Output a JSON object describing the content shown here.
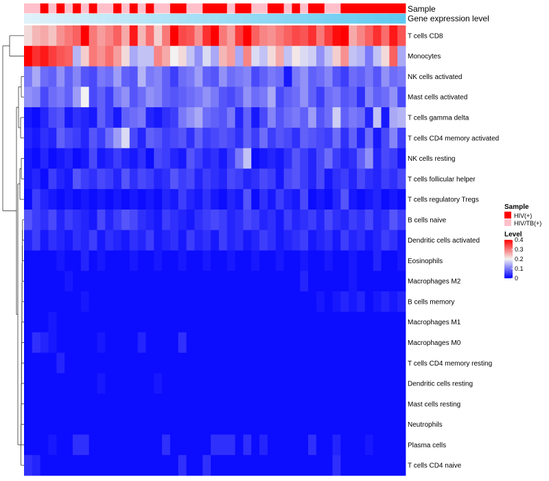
{
  "chart_data": {
    "type": "heatmap",
    "title": "",
    "annotation_tracks": [
      "Sample",
      "Gene expression level"
    ],
    "rows": [
      "T cells CD8",
      "Monocytes",
      "NK cells activated",
      "Mast cells activated",
      "T cells gamma delta",
      "T cells CD4 memory activated",
      "NK cells resting",
      "T cells follicular helper",
      "T cells regulatory  Tregs",
      "B cells naive",
      "Dendritic cells activated",
      "Eosinophils",
      "Macrophages M2",
      "B cells memory",
      "Macrophages M1",
      "Macrophages M0",
      "T cells CD4 memory resting",
      "Dendritic cells resting",
      "Mast cells resting",
      "Neutrophils",
      "Plasma cells",
      "T cells CD4 naive"
    ],
    "n_columns": 47,
    "sample_groups": [
      0,
      0,
      1,
      0,
      1,
      0,
      1,
      0,
      1,
      0,
      0,
      1,
      0,
      1,
      0,
      1,
      0,
      0,
      1,
      1,
      0,
      0,
      1,
      1,
      1,
      0,
      1,
      1,
      0,
      0,
      1,
      1,
      0,
      1,
      0,
      1,
      1,
      0,
      0,
      1,
      1,
      1,
      1,
      1,
      1,
      1,
      1
    ],
    "gene_expression_level": [
      0.05,
      0.07,
      0.09,
      0.11,
      0.13,
      0.15,
      0.17,
      0.19,
      0.21,
      0.23,
      0.25,
      0.27,
      0.29,
      0.31,
      0.33,
      0.35,
      0.37,
      0.39,
      0.41,
      0.43,
      0.45,
      0.47,
      0.49,
      0.51,
      0.53,
      0.55,
      0.57,
      0.59,
      0.61,
      0.63,
      0.65,
      0.67,
      0.69,
      0.71,
      0.73,
      0.75,
      0.77,
      0.79,
      0.81,
      0.83,
      0.85,
      0.87,
      0.89,
      0.91,
      0.93,
      0.95,
      0.97
    ],
    "values": [
      [
        0.22,
        0.25,
        0.26,
        0.24,
        0.28,
        0.3,
        0.32,
        0.41,
        0.3,
        0.27,
        0.29,
        0.32,
        0.26,
        0.38,
        0.25,
        0.31,
        0.23,
        0.3,
        0.4,
        0.34,
        0.33,
        0.28,
        0.36,
        0.41,
        0.3,
        0.27,
        0.35,
        0.41,
        0.32,
        0.29,
        0.28,
        0.3,
        0.32,
        0.34,
        0.33,
        0.36,
        0.3,
        0.35,
        0.39,
        0.41,
        0.26,
        0.29,
        0.32,
        0.36,
        0.31,
        0.38,
        0.33
      ],
      [
        0.4,
        0.36,
        0.38,
        0.35,
        0.33,
        0.32,
        0.15,
        0.23,
        0.3,
        0.28,
        0.31,
        0.27,
        0.22,
        0.14,
        0.16,
        0.16,
        0.29,
        0.26,
        0.2,
        0.22,
        0.16,
        0.12,
        0.18,
        0.14,
        0.25,
        0.27,
        0.14,
        0.29,
        0.18,
        0.16,
        0.22,
        0.26,
        0.16,
        0.21,
        0.18,
        0.17,
        0.12,
        0.16,
        0.23,
        0.28,
        0.16,
        0.15,
        0.1,
        0.16,
        0.22,
        0.32,
        0.14
      ],
      [
        0.1,
        0.14,
        0.09,
        0.08,
        0.12,
        0.08,
        0.11,
        0.07,
        0.06,
        0.1,
        0.09,
        0.13,
        0.08,
        0.07,
        0.15,
        0.1,
        0.11,
        0.08,
        0.05,
        0.09,
        0.1,
        0.13,
        0.08,
        0.07,
        0.12,
        0.09,
        0.1,
        0.11,
        0.06,
        0.08,
        0.1,
        0.09,
        0.02,
        0.1,
        0.12,
        0.08,
        0.09,
        0.11,
        0.07,
        0.05,
        0.09,
        0.08,
        0.1,
        0.07,
        0.12,
        0.09,
        0.1
      ],
      [
        0.12,
        0.11,
        0.06,
        0.09,
        0.1,
        0.08,
        0.13,
        0.2,
        0.06,
        0.08,
        0.05,
        0.1,
        0.12,
        0.07,
        0.09,
        0.12,
        0.11,
        0.08,
        0.07,
        0.08,
        0.09,
        0.1,
        0.12,
        0.1,
        0.07,
        0.06,
        0.08,
        0.12,
        0.09,
        0.1,
        0.14,
        0.06,
        0.08,
        0.09,
        0.12,
        0.08,
        0.05,
        0.09,
        0.1,
        0.07,
        0.08,
        0.04,
        0.11,
        0.08,
        0.09,
        0.12,
        0.06
      ],
      [
        0.02,
        0.01,
        0.03,
        0.06,
        0.07,
        0.02,
        0.04,
        0.03,
        0.02,
        0.08,
        0.05,
        0.02,
        0.08,
        0.09,
        0.1,
        0.03,
        0.02,
        0.04,
        0.05,
        0.1,
        0.12,
        0.14,
        0.09,
        0.08,
        0.07,
        0.1,
        0.03,
        0.08,
        0.02,
        0.06,
        0.11,
        0.07,
        0.09,
        0.1,
        0.08,
        0.13,
        0.07,
        0.09,
        0.17,
        0.08,
        0.1,
        0.09,
        0.03,
        0.16,
        0.02,
        0.14,
        0.15
      ],
      [
        0.03,
        0.02,
        0.04,
        0.03,
        0.08,
        0.06,
        0.05,
        0.03,
        0.07,
        0.05,
        0.09,
        0.13,
        0.18,
        0.06,
        0.03,
        0.08,
        0.07,
        0.05,
        0.06,
        0.07,
        0.04,
        0.08,
        0.05,
        0.06,
        0.07,
        0.06,
        0.04,
        0.08,
        0.05,
        0.09,
        0.05,
        0.07,
        0.06,
        0.04,
        0.08,
        0.07,
        0.06,
        0.05,
        0.09,
        0.04,
        0.08,
        0.03,
        0.09,
        0.02,
        0.06,
        0.11,
        0.05
      ],
      [
        0.02,
        0.01,
        0.03,
        0.01,
        0.02,
        0.03,
        0.01,
        0.02,
        0.06,
        0.02,
        0.03,
        0.05,
        0.03,
        0.02,
        0.04,
        0.01,
        0.06,
        0.05,
        0.03,
        0.02,
        0.07,
        0.05,
        0.03,
        0.04,
        0.02,
        0.05,
        0.1,
        0.16,
        0.01,
        0.02,
        0.03,
        0.02,
        0.04,
        0.07,
        0.05,
        0.03,
        0.06,
        0.09,
        0.05,
        0.03,
        0.04,
        0.08,
        0.12,
        0.03,
        0.06,
        0.05,
        0.02
      ],
      [
        0.02,
        0.03,
        0.01,
        0.05,
        0.03,
        0.02,
        0.07,
        0.05,
        0.04,
        0.06,
        0.05,
        0.03,
        0.07,
        0.04,
        0.06,
        0.05,
        0.03,
        0.04,
        0.07,
        0.05,
        0.06,
        0.03,
        0.05,
        0.04,
        0.03,
        0.06,
        0.05,
        0.03,
        0.04,
        0.06,
        0.05,
        0.02,
        0.06,
        0.07,
        0.05,
        0.03,
        0.06,
        0.02,
        0.04,
        0.05,
        0.03,
        0.06,
        0.04,
        0.03,
        0.05,
        0.04,
        0.06
      ],
      [
        0.01,
        0.05,
        0.03,
        0.02,
        0.01,
        0.02,
        0.01,
        0.02,
        0.01,
        0.02,
        0.01,
        0.02,
        0.01,
        0.02,
        0.01,
        0.02,
        0.01,
        0.03,
        0.02,
        0.05,
        0.03,
        0.02,
        0.04,
        0.02,
        0.01,
        0.03,
        0.02,
        0.07,
        0.01,
        0.04,
        0.02,
        0.05,
        0.03,
        0.02,
        0.06,
        0.01,
        0.02,
        0.01,
        0.03,
        0.07,
        0.02,
        0.01,
        0.02,
        0.03,
        0.01,
        0.02,
        0.01
      ],
      [
        0.07,
        0.05,
        0.04,
        0.06,
        0.03,
        0.05,
        0.04,
        0.03,
        0.02,
        0.06,
        0.03,
        0.05,
        0.07,
        0.06,
        0.04,
        0.03,
        0.02,
        0.05,
        0.04,
        0.03,
        0.02,
        0.04,
        0.05,
        0.06,
        0.05,
        0.03,
        0.04,
        0.06,
        0.05,
        0.03,
        0.04,
        0.02,
        0.05,
        0.03,
        0.04,
        0.05,
        0.03,
        0.06,
        0.04,
        0.03,
        0.05,
        0.04,
        0.06,
        0.03,
        0.04,
        0.07,
        0.05
      ],
      [
        0.03,
        0.05,
        0.02,
        0.04,
        0.03,
        0.02,
        0.04,
        0.03,
        0.05,
        0.02,
        0.04,
        0.03,
        0.02,
        0.04,
        0.03,
        0.05,
        0.02,
        0.03,
        0.04,
        0.02,
        0.05,
        0.03,
        0.04,
        0.02,
        0.05,
        0.03,
        0.04,
        0.02,
        0.03,
        0.05,
        0.04,
        0.02,
        0.03,
        0.04,
        0.05,
        0.02,
        0.03,
        0.04,
        0.02,
        0.05,
        0.03,
        0.04,
        0.02,
        0.03,
        0.05,
        0.04,
        0.02
      ],
      [
        0.01,
        0.01,
        0.01,
        0.01,
        0.02,
        0.01,
        0.01,
        0.03,
        0.01,
        0.02,
        0.01,
        0.01,
        0.01,
        0.02,
        0.01,
        0.01,
        0.02,
        0.01,
        0.01,
        0.02,
        0.01,
        0.01,
        0.02,
        0.01,
        0.01,
        0.02,
        0.01,
        0.01,
        0.02,
        0.01,
        0.01,
        0.02,
        0.01,
        0.01,
        0.02,
        0.01,
        0.01,
        0.02,
        0.01,
        0.01,
        0.02,
        0.01,
        0.01,
        0.03,
        0.01,
        0.01,
        0.02
      ],
      [
        0.01,
        0.01,
        0.01,
        0.01,
        0.01,
        0.02,
        0.01,
        0.01,
        0.01,
        0.01,
        0.01,
        0.01,
        0.01,
        0.01,
        0.01,
        0.01,
        0.01,
        0.01,
        0.01,
        0.01,
        0.01,
        0.01,
        0.01,
        0.01,
        0.01,
        0.01,
        0.01,
        0.01,
        0.01,
        0.01,
        0.01,
        0.01,
        0.01,
        0.01,
        0.03,
        0.01,
        0.01,
        0.01,
        0.01,
        0.01,
        0.02,
        0.01,
        0.01,
        0.01,
        0.01,
        0.01,
        0.01
      ],
      [
        0.01,
        0.01,
        0.01,
        0.01,
        0.01,
        0.01,
        0.01,
        0.02,
        0.01,
        0.01,
        0.01,
        0.01,
        0.01,
        0.01,
        0.01,
        0.01,
        0.01,
        0.01,
        0.01,
        0.01,
        0.01,
        0.01,
        0.01,
        0.01,
        0.01,
        0.01,
        0.01,
        0.01,
        0.01,
        0.01,
        0.01,
        0.01,
        0.01,
        0.01,
        0.01,
        0.01,
        0.02,
        0.01,
        0.02,
        0.03,
        0.02,
        0.03,
        0.01,
        0.02,
        0.03,
        0.02,
        0.03
      ],
      [
        0.01,
        0.01,
        0.01,
        0.02,
        0.01,
        0.01,
        0.01,
        0.01,
        0.01,
        0.01,
        0.01,
        0.01,
        0.01,
        0.01,
        0.01,
        0.01,
        0.01,
        0.01,
        0.01,
        0.01,
        0.01,
        0.01,
        0.01,
        0.01,
        0.01,
        0.01,
        0.01,
        0.01,
        0.01,
        0.01,
        0.01,
        0.01,
        0.01,
        0.01,
        0.01,
        0.01,
        0.01,
        0.01,
        0.01,
        0.01,
        0.01,
        0.01,
        0.01,
        0.01,
        0.01,
        0.01,
        0.01
      ],
      [
        0.01,
        0.04,
        0.03,
        0.02,
        0.01,
        0.01,
        0.01,
        0.01,
        0.01,
        0.02,
        0.01,
        0.01,
        0.01,
        0.01,
        0.03,
        0.01,
        0.01,
        0.01,
        0.01,
        0.04,
        0.01,
        0.01,
        0.01,
        0.01,
        0.01,
        0.01,
        0.01,
        0.01,
        0.01,
        0.01,
        0.01,
        0.01,
        0.01,
        0.01,
        0.01,
        0.01,
        0.01,
        0.01,
        0.01,
        0.01,
        0.01,
        0.01,
        0.01,
        0.01,
        0.01,
        0.01,
        0.01
      ],
      [
        0.01,
        0.01,
        0.01,
        0.01,
        0.03,
        0.01,
        0.01,
        0.01,
        0.01,
        0.01,
        0.01,
        0.01,
        0.01,
        0.01,
        0.01,
        0.01,
        0.01,
        0.01,
        0.01,
        0.01,
        0.01,
        0.01,
        0.01,
        0.01,
        0.01,
        0.01,
        0.01,
        0.01,
        0.01,
        0.01,
        0.01,
        0.01,
        0.01,
        0.01,
        0.01,
        0.01,
        0.01,
        0.01,
        0.01,
        0.01,
        0.01,
        0.01,
        0.01,
        0.01,
        0.01,
        0.01,
        0.01
      ],
      [
        0.01,
        0.01,
        0.01,
        0.01,
        0.01,
        0.01,
        0.01,
        0.01,
        0.01,
        0.02,
        0.01,
        0.01,
        0.01,
        0.01,
        0.01,
        0.01,
        0.02,
        0.01,
        0.01,
        0.01,
        0.01,
        0.01,
        0.01,
        0.01,
        0.01,
        0.01,
        0.01,
        0.01,
        0.01,
        0.01,
        0.01,
        0.01,
        0.01,
        0.01,
        0.01,
        0.01,
        0.01,
        0.01,
        0.01,
        0.01,
        0.01,
        0.01,
        0.01,
        0.01,
        0.01,
        0.01,
        0.01
      ],
      [
        0.01,
        0.01,
        0.01,
        0.01,
        0.01,
        0.01,
        0.01,
        0.01,
        0.01,
        0.01,
        0.01,
        0.01,
        0.01,
        0.01,
        0.01,
        0.01,
        0.01,
        0.01,
        0.01,
        0.01,
        0.01,
        0.01,
        0.01,
        0.01,
        0.01,
        0.01,
        0.01,
        0.01,
        0.01,
        0.01,
        0.01,
        0.01,
        0.01,
        0.01,
        0.01,
        0.01,
        0.01,
        0.01,
        0.01,
        0.01,
        0.01,
        0.01,
        0.01,
        0.01,
        0.01,
        0.01,
        0.01
      ],
      [
        0.01,
        0.01,
        0.01,
        0.01,
        0.01,
        0.01,
        0.01,
        0.01,
        0.01,
        0.01,
        0.01,
        0.01,
        0.01,
        0.01,
        0.01,
        0.01,
        0.01,
        0.01,
        0.01,
        0.01,
        0.01,
        0.01,
        0.01,
        0.01,
        0.01,
        0.01,
        0.01,
        0.01,
        0.01,
        0.01,
        0.01,
        0.01,
        0.01,
        0.01,
        0.01,
        0.01,
        0.01,
        0.01,
        0.01,
        0.01,
        0.01,
        0.01,
        0.01,
        0.01,
        0.01,
        0.01,
        0.01
      ],
      [
        0.01,
        0.01,
        0.01,
        0.02,
        0.01,
        0.01,
        0.04,
        0.04,
        0.01,
        0.01,
        0.01,
        0.01,
        0.01,
        0.01,
        0.01,
        0.01,
        0.01,
        0.04,
        0.01,
        0.01,
        0.01,
        0.01,
        0.01,
        0.04,
        0.04,
        0.04,
        0.01,
        0.04,
        0.01,
        0.03,
        0.01,
        0.01,
        0.01,
        0.01,
        0.01,
        0.04,
        0.01,
        0.01,
        0.03,
        0.01,
        0.01,
        0.01,
        0.02,
        0.01,
        0.01,
        0.01,
        0.01
      ],
      [
        0.04,
        0.03,
        0.01,
        0.01,
        0.01,
        0.01,
        0.01,
        0.01,
        0.01,
        0.01,
        0.01,
        0.01,
        0.01,
        0.01,
        0.01,
        0.01,
        0.01,
        0.01,
        0.01,
        0.04,
        0.01,
        0.01,
        0.04,
        0.01,
        0.01,
        0.01,
        0.01,
        0.01,
        0.01,
        0.01,
        0.01,
        0.01,
        0.01,
        0.01,
        0.01,
        0.01,
        0.01,
        0.01,
        0.04,
        0.01,
        0.01,
        0.01,
        0.01,
        0.01,
        0.01,
        0.01,
        0.01
      ]
    ],
    "legend": {
      "sample_title": "Sample",
      "sample_labels": [
        "HIV(+)",
        "HIV/TB(+)"
      ],
      "level_title": "Level",
      "level_ticks": [
        0.4,
        0.3,
        0.2,
        0.1,
        0
      ]
    },
    "colors": {
      "low": "#0000ff",
      "mid": "#f2f2f2",
      "high": "#ff0000",
      "hiv": "#ff0000",
      "hiv_tb": "#ffc0cb",
      "gel_low": "#e6f4fb",
      "gel_high": "#5bc8f0"
    },
    "color_scale": {
      "min": 0,
      "mid": 0.2,
      "max": 0.4
    }
  }
}
